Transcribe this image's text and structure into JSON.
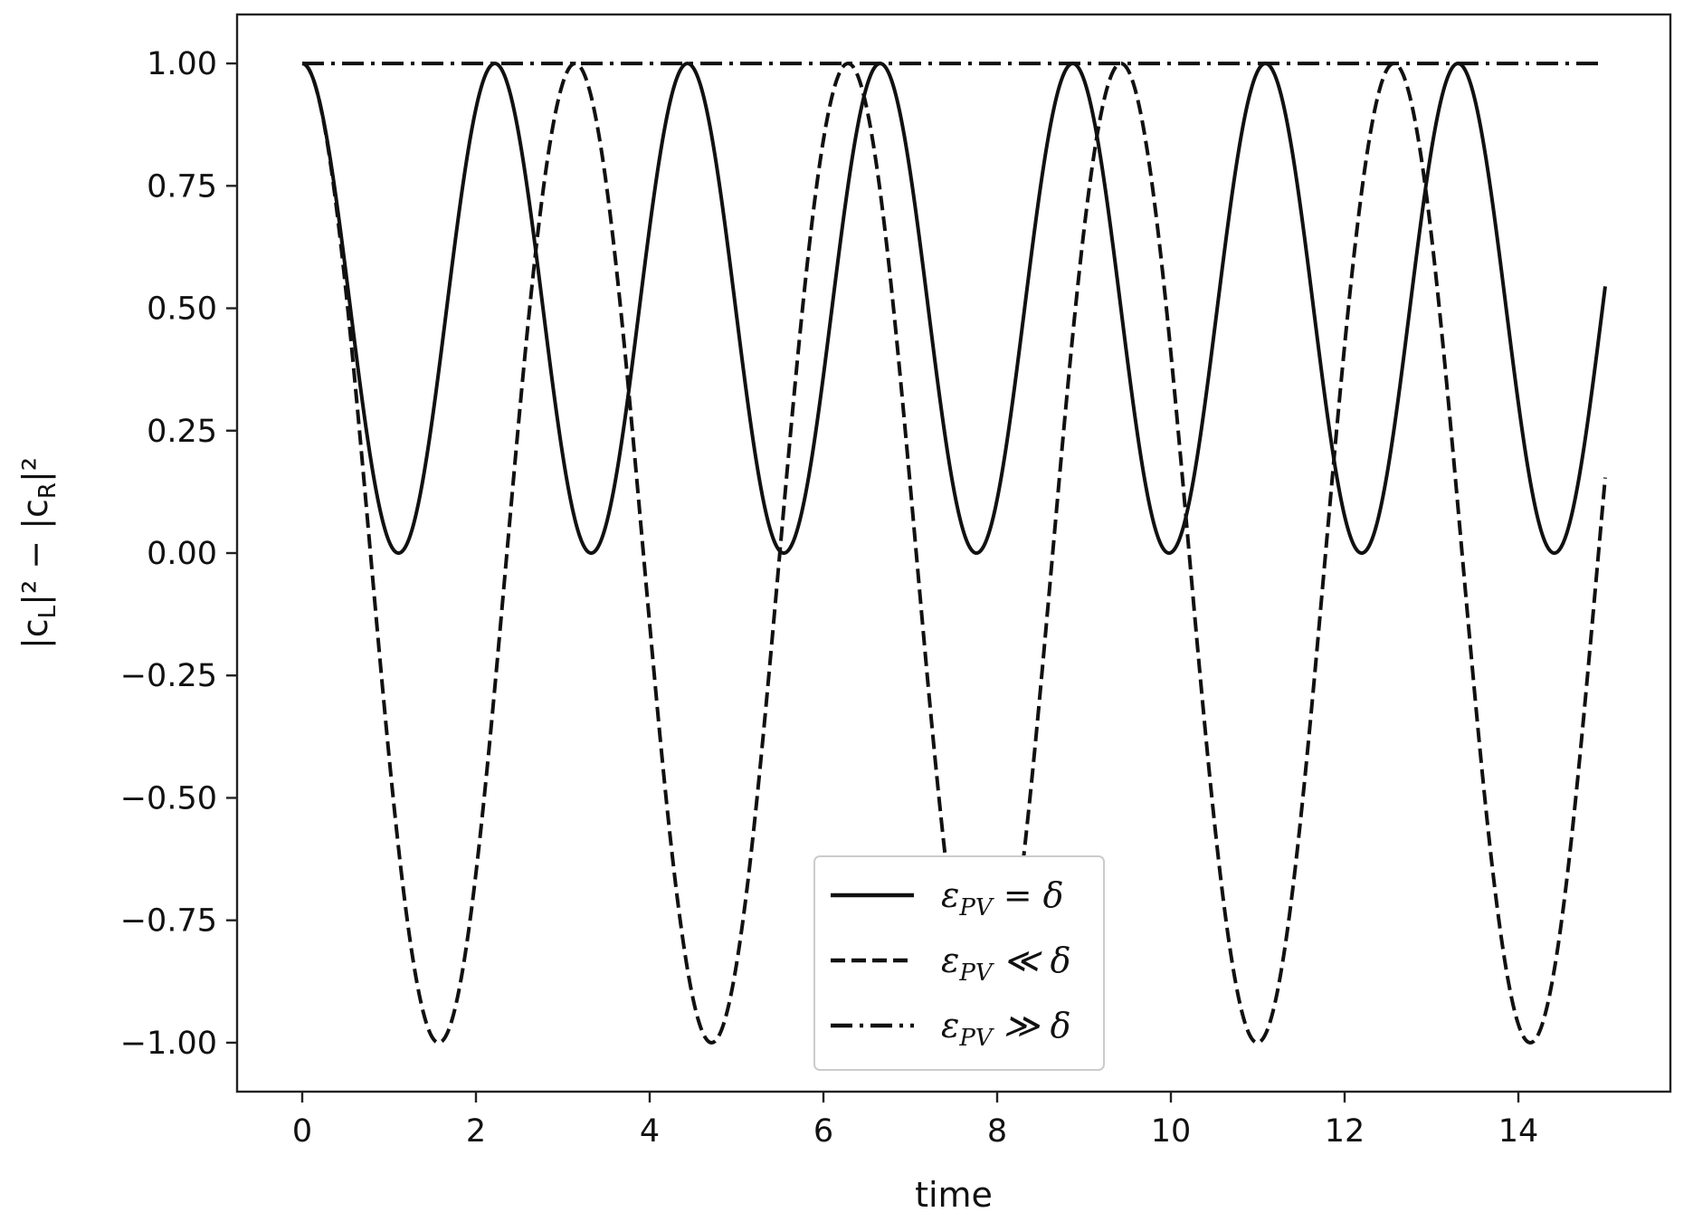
{
  "chart_data": {
    "type": "line",
    "xlabel": "time",
    "ylabel": "|c_L|² − |c_R|²",
    "ylabel_parts": {
      "a": "|c",
      "a_sub": "L",
      "b": "|² − |c",
      "b_sub": "R",
      "c": "|²"
    },
    "xlim": [
      -0.75,
      15.75
    ],
    "ylim": [
      -1.1,
      1.1
    ],
    "x_ticks": [
      0,
      2,
      4,
      6,
      8,
      10,
      12,
      14
    ],
    "x_tick_labels": [
      "0",
      "2",
      "4",
      "6",
      "8",
      "10",
      "12",
      "14"
    ],
    "y_ticks": [
      1.0,
      0.75,
      0.5,
      0.25,
      0.0,
      -0.25,
      -0.5,
      -0.75,
      -1.0
    ],
    "y_tick_labels": [
      "1.00",
      "0.75",
      "0.50",
      "0.25",
      "0.00",
      "−0.25",
      "−0.50",
      "−0.75",
      "−1.00"
    ],
    "grid": false,
    "legend_position": "lower center",
    "x": [
      0.0,
      0.5,
      1.0,
      1.5,
      2.0,
      2.5,
      3.0,
      3.5,
      4.0,
      4.5,
      5.0,
      5.5,
      6.0,
      6.5,
      7.0,
      7.5,
      8.0,
      8.5,
      9.0,
      9.5,
      10.0,
      10.5,
      11.0,
      11.5,
      12.0,
      12.5,
      13.0,
      13.5,
      14.0,
      14.5,
      15.0
    ],
    "series": [
      {
        "name": "ε_PV = δ",
        "label_parts": {
          "sym": "ε",
          "sub": "PV",
          "rel": " = δ"
        },
        "dash": "solid",
        "values": [
          1.0,
          0.538,
          0.01,
          0.314,
          0.91,
          0.782,
          0.123,
          0.122,
          0.78,
          0.911,
          0.315,
          0.009,
          0.536,
          1.0,
          0.54,
          0.01,
          0.312,
          0.909,
          0.783,
          0.124,
          0.121,
          0.778,
          0.912,
          0.317,
          0.009,
          0.534,
          1.0,
          0.542,
          0.011,
          0.311,
          0.514
        ]
      },
      {
        "name": "ε_PV ≪ δ",
        "label_parts": {
          "sym": "ε",
          "sub": "PV",
          "rel": " ≪ δ"
        },
        "dash": "dashed",
        "values": [
          1.0,
          0.54,
          -0.416,
          -0.99,
          -0.654,
          0.284,
          0.96,
          0.754,
          -0.146,
          -0.911,
          -0.839,
          0.004,
          0.844,
          0.907,
          0.137,
          -0.76,
          -0.958,
          -0.275,
          0.66,
          0.988,
          0.408,
          -0.547,
          -1.0,
          -0.537,
          0.424,
          0.991,
          0.648,
          -0.292,
          -0.963,
          -0.748,
          0.155
        ]
      },
      {
        "name": "ε_PV ≫ δ",
        "label_parts": {
          "sym": "ε",
          "sub": "PV",
          "rel": " ≫ δ"
        },
        "dash": "dashdot",
        "values": [
          1.0,
          1.0,
          1.0,
          1.0,
          1.0,
          1.0,
          1.0,
          1.0,
          1.0,
          1.0,
          1.0,
          1.0,
          1.0,
          1.0,
          1.0,
          1.0,
          1.0,
          1.0,
          1.0,
          1.0,
          1.0,
          1.0,
          1.0,
          1.0,
          1.0,
          1.0,
          1.0,
          1.0,
          1.0,
          1.0,
          1.0
        ]
      }
    ],
    "model": {
      "solid": {
        "form": "1 - A sin^2(w t)",
        "A": 1.0,
        "w": 1.4167
      },
      "dashed": {
        "form": "cos(w t)",
        "w": 2.0
      },
      "dashdot": {
        "form": "constant",
        "value": 1.0
      }
    }
  }
}
